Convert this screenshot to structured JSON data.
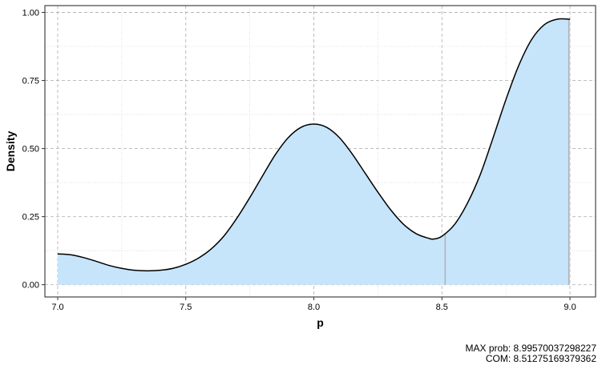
{
  "chart_data": {
    "type": "area",
    "title": "",
    "xlabel": "p",
    "ylabel": "Density",
    "xlim": [
      6.95,
      9.1
    ],
    "ylim": [
      -0.045,
      1.025
    ],
    "x_ticks": [
      "7.0",
      "7.5",
      "8.0",
      "8.5",
      "9.0"
    ],
    "x_tick_values": [
      7.0,
      7.5,
      8.0,
      8.5,
      9.0
    ],
    "y_ticks": [
      "0.00",
      "0.25",
      "0.50",
      "0.75",
      "1.00"
    ],
    "y_tick_values": [
      0.0,
      0.25,
      0.5,
      0.75,
      1.0
    ],
    "grid": true,
    "fill_color": "#c6e5fb",
    "line_color": "#000000",
    "marker_color": "#b3b3b3",
    "series": [
      {
        "x": [
          7.0,
          7.05,
          7.1,
          7.15,
          7.2,
          7.25,
          7.3,
          7.35,
          7.4,
          7.45,
          7.5,
          7.55,
          7.6,
          7.65,
          7.7,
          7.75,
          7.8,
          7.85,
          7.9,
          7.95,
          8.0,
          8.05,
          8.1,
          8.15,
          8.2,
          8.25,
          8.3,
          8.35,
          8.4,
          8.45,
          8.47,
          8.5,
          8.55,
          8.6,
          8.65,
          8.7,
          8.75,
          8.8,
          8.85,
          8.9,
          8.95,
          9.0
        ],
        "y": [
          0.113,
          0.11,
          0.1,
          0.086,
          0.071,
          0.06,
          0.053,
          0.051,
          0.053,
          0.06,
          0.075,
          0.098,
          0.132,
          0.18,
          0.245,
          0.32,
          0.4,
          0.478,
          0.54,
          0.578,
          0.59,
          0.578,
          0.54,
          0.48,
          0.41,
          0.34,
          0.275,
          0.222,
          0.187,
          0.17,
          0.168,
          0.178,
          0.222,
          0.3,
          0.405,
          0.54,
          0.68,
          0.805,
          0.9,
          0.955,
          0.975,
          0.975
        ]
      }
    ],
    "markers": [
      {
        "label": "MAX prob",
        "x": 8.99570037298227
      },
      {
        "label": "COM",
        "x": 8.51275169379362
      }
    ]
  },
  "notes": {
    "max_prob": "MAX prob: 8.99570037298227",
    "com": "COM: 8.51275169379362"
  }
}
